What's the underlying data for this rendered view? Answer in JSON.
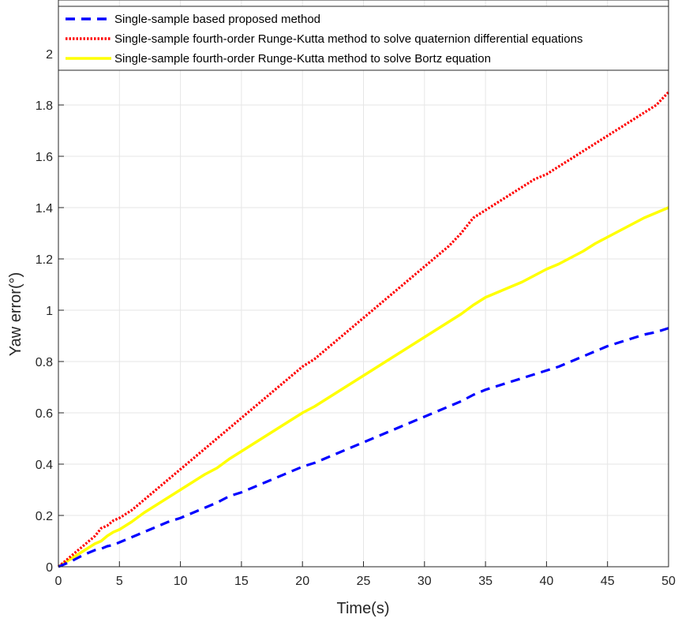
{
  "chart_data": {
    "type": "line",
    "title": "",
    "xlabel": "Time(s)",
    "ylabel": "Yaw error(°)",
    "xlim": [
      0,
      50
    ],
    "ylim": [
      0,
      2
    ],
    "xticks": [
      0,
      5,
      10,
      15,
      20,
      25,
      30,
      35,
      40,
      45,
      50
    ],
    "yticks": [
      0,
      0.2,
      0.4,
      0.6,
      0.8,
      1,
      1.2,
      1.4,
      1.6,
      1.8,
      2
    ],
    "grid": true,
    "legend_position": "top",
    "series": [
      {
        "name": "Single-sample based proposed method",
        "color": "#0000ff",
        "style": "dashed",
        "x": [
          0,
          1,
          2,
          3,
          3.5,
          4,
          4.5,
          5,
          6,
          7,
          8,
          9,
          10,
          11,
          12,
          13,
          14,
          15,
          16,
          17,
          18,
          19,
          20,
          21,
          22,
          23,
          24,
          25,
          26,
          27,
          28,
          29,
          30,
          31,
          32,
          33,
          34,
          35,
          36,
          37,
          38,
          39,
          40,
          41,
          42,
          43,
          44,
          45,
          46,
          47,
          48,
          49,
          50
        ],
        "values": [
          0,
          0.02,
          0.045,
          0.065,
          0.07,
          0.08,
          0.085,
          0.095,
          0.115,
          0.135,
          0.155,
          0.175,
          0.19,
          0.21,
          0.23,
          0.25,
          0.275,
          0.29,
          0.31,
          0.33,
          0.35,
          0.37,
          0.39,
          0.405,
          0.425,
          0.445,
          0.465,
          0.485,
          0.505,
          0.525,
          0.545,
          0.565,
          0.585,
          0.605,
          0.625,
          0.645,
          0.67,
          0.69,
          0.705,
          0.72,
          0.735,
          0.75,
          0.765,
          0.78,
          0.8,
          0.82,
          0.84,
          0.86,
          0.875,
          0.89,
          0.905,
          0.915,
          0.93
        ]
      },
      {
        "name": "Single-sample fourth-order Runge-Kutta method to solve quaternion differential equations",
        "color": "#ff0000",
        "style": "dotted",
        "x": [
          0,
          1,
          2,
          3,
          3.5,
          4,
          4.5,
          5,
          6,
          7,
          8,
          9,
          10,
          11,
          12,
          13,
          14,
          15,
          16,
          17,
          18,
          19,
          20,
          21,
          22,
          23,
          24,
          25,
          26,
          27,
          28,
          29,
          30,
          31,
          32,
          33,
          34,
          35,
          36,
          37,
          38,
          39,
          40,
          41,
          42,
          43,
          44,
          45,
          46,
          47,
          48,
          49,
          50
        ],
        "values": [
          0,
          0.04,
          0.08,
          0.12,
          0.15,
          0.16,
          0.18,
          0.19,
          0.22,
          0.26,
          0.3,
          0.34,
          0.38,
          0.42,
          0.46,
          0.5,
          0.54,
          0.58,
          0.62,
          0.66,
          0.7,
          0.74,
          0.78,
          0.81,
          0.85,
          0.89,
          0.93,
          0.97,
          1.01,
          1.05,
          1.09,
          1.13,
          1.17,
          1.21,
          1.25,
          1.3,
          1.36,
          1.39,
          1.42,
          1.45,
          1.48,
          1.51,
          1.53,
          1.56,
          1.59,
          1.62,
          1.65,
          1.68,
          1.71,
          1.74,
          1.77,
          1.8,
          1.85
        ]
      },
      {
        "name": "Single-sample fourth-order Runge-Kutta method to solve Bortz equation",
        "color": "#ffff00",
        "style": "solid",
        "x": [
          0,
          1,
          2,
          3,
          3.5,
          4,
          4.5,
          5,
          6,
          7,
          8,
          9,
          10,
          11,
          12,
          13,
          14,
          15,
          16,
          17,
          18,
          19,
          20,
          21,
          22,
          23,
          24,
          25,
          26,
          27,
          28,
          29,
          30,
          31,
          32,
          33,
          34,
          35,
          36,
          37,
          38,
          39,
          40,
          41,
          42,
          43,
          44,
          45,
          46,
          47,
          48,
          49,
          50
        ],
        "values": [
          0,
          0.03,
          0.06,
          0.09,
          0.1,
          0.12,
          0.135,
          0.145,
          0.175,
          0.21,
          0.24,
          0.27,
          0.3,
          0.33,
          0.36,
          0.385,
          0.42,
          0.45,
          0.48,
          0.51,
          0.54,
          0.57,
          0.6,
          0.625,
          0.655,
          0.685,
          0.715,
          0.745,
          0.775,
          0.805,
          0.835,
          0.865,
          0.895,
          0.925,
          0.955,
          0.985,
          1.02,
          1.05,
          1.07,
          1.09,
          1.11,
          1.135,
          1.16,
          1.18,
          1.205,
          1.23,
          1.26,
          1.285,
          1.31,
          1.335,
          1.36,
          1.38,
          1.4
        ]
      }
    ]
  }
}
